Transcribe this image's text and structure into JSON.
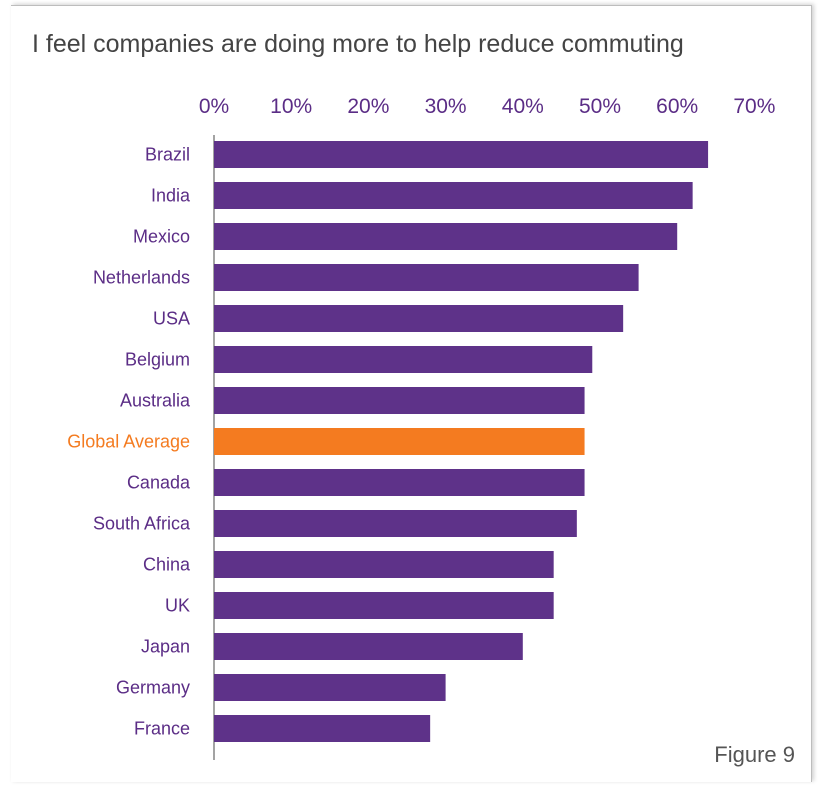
{
  "figure_label": "Figure 9",
  "colors": {
    "bar": "#5e3289",
    "highlight": "#f47b20",
    "label": "#5b2d86",
    "axis": "#666666"
  },
  "chart_data": {
    "type": "bar",
    "orientation": "horizontal",
    "title": "I feel companies are doing more to help reduce commuting",
    "xlabel": "",
    "ylabel": "",
    "xlim": [
      0,
      70
    ],
    "xticks": [
      "0%",
      "10%",
      "20%",
      "30%",
      "40%",
      "50%",
      "60%",
      "70%"
    ],
    "x_axis_position": "top",
    "grid": false,
    "categories": [
      "Brazil",
      "India",
      "Mexico",
      "Netherlands",
      "USA",
      "Belgium",
      "Australia",
      "Global Average",
      "Canada",
      "South Africa",
      "China",
      "UK",
      "Japan",
      "Germany",
      "France"
    ],
    "values": [
      64,
      62,
      60,
      55,
      53,
      49,
      48,
      48,
      48,
      47,
      44,
      44,
      40,
      30,
      28
    ],
    "highlight_category": "Global Average"
  }
}
